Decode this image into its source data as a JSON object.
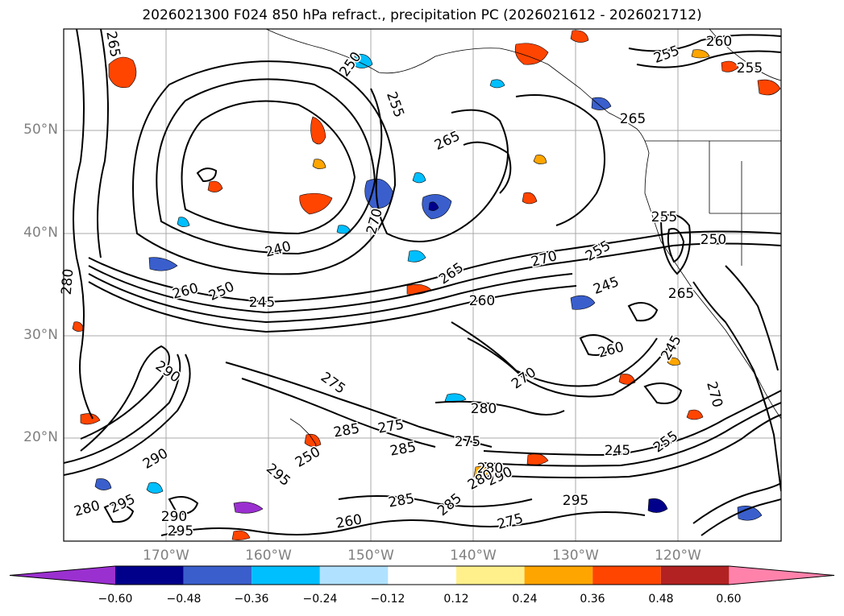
{
  "title": "2026021300 F024 850 hPa refract., precipitation PC (2026021612 - 2026021712)",
  "map": {
    "lat_labels": [
      "50°N",
      "40°N",
      "30°N",
      "20°N"
    ],
    "lon_labels": [
      "170°W",
      "160°W",
      "150°W",
      "140°W",
      "130°W",
      "120°W"
    ],
    "contour_labels": [
      {
        "text": "265"
      },
      {
        "text": "250"
      },
      {
        "text": "255"
      },
      {
        "text": "260"
      },
      {
        "text": "255"
      },
      {
        "text": "255"
      },
      {
        "text": "265"
      },
      {
        "text": "265"
      },
      {
        "text": "240"
      },
      {
        "text": "265"
      },
      {
        "text": "270"
      },
      {
        "text": "255"
      },
      {
        "text": "245"
      },
      {
        "text": "260"
      },
      {
        "text": "270"
      },
      {
        "text": "250"
      },
      {
        "text": "245"
      },
      {
        "text": "280"
      },
      {
        "text": "250"
      },
      {
        "text": "260"
      },
      {
        "text": "260"
      },
      {
        "text": "245"
      },
      {
        "text": "270"
      },
      {
        "text": "275"
      },
      {
        "text": "280"
      },
      {
        "text": "275"
      },
      {
        "text": "285"
      },
      {
        "text": "285"
      },
      {
        "text": "275"
      },
      {
        "text": "290"
      },
      {
        "text": "295"
      },
      {
        "text": "285"
      },
      {
        "text": "290"
      },
      {
        "text": "295"
      },
      {
        "text": "280"
      },
      {
        "text": "260"
      },
      {
        "text": "290"
      },
      {
        "text": "295"
      },
      {
        "text": "290"
      },
      {
        "text": "295"
      },
      {
        "text": "280"
      },
      {
        "text": "285"
      },
      {
        "text": "275"
      },
      {
        "text": "245"
      },
      {
        "text": "255"
      },
      {
        "text": "270"
      },
      {
        "text": "255"
      },
      {
        "text": "265"
      },
      {
        "text": "250"
      },
      {
        "text": "280"
      }
    ]
  },
  "colorbar": {
    "ticks": [
      "−0.60",
      "−0.48",
      "−0.36",
      "−0.24",
      "−0.12",
      "0.12",
      "0.24",
      "0.36",
      "0.48",
      "0.60"
    ],
    "colors": [
      "#9b30d0",
      "#00008b",
      "#3a5fcd",
      "#00bfff",
      "#b0e2ff",
      "#ffffff",
      "#fff08b",
      "#ffa500",
      "#ff4500",
      "#b22222",
      "#ff82ab"
    ]
  }
}
